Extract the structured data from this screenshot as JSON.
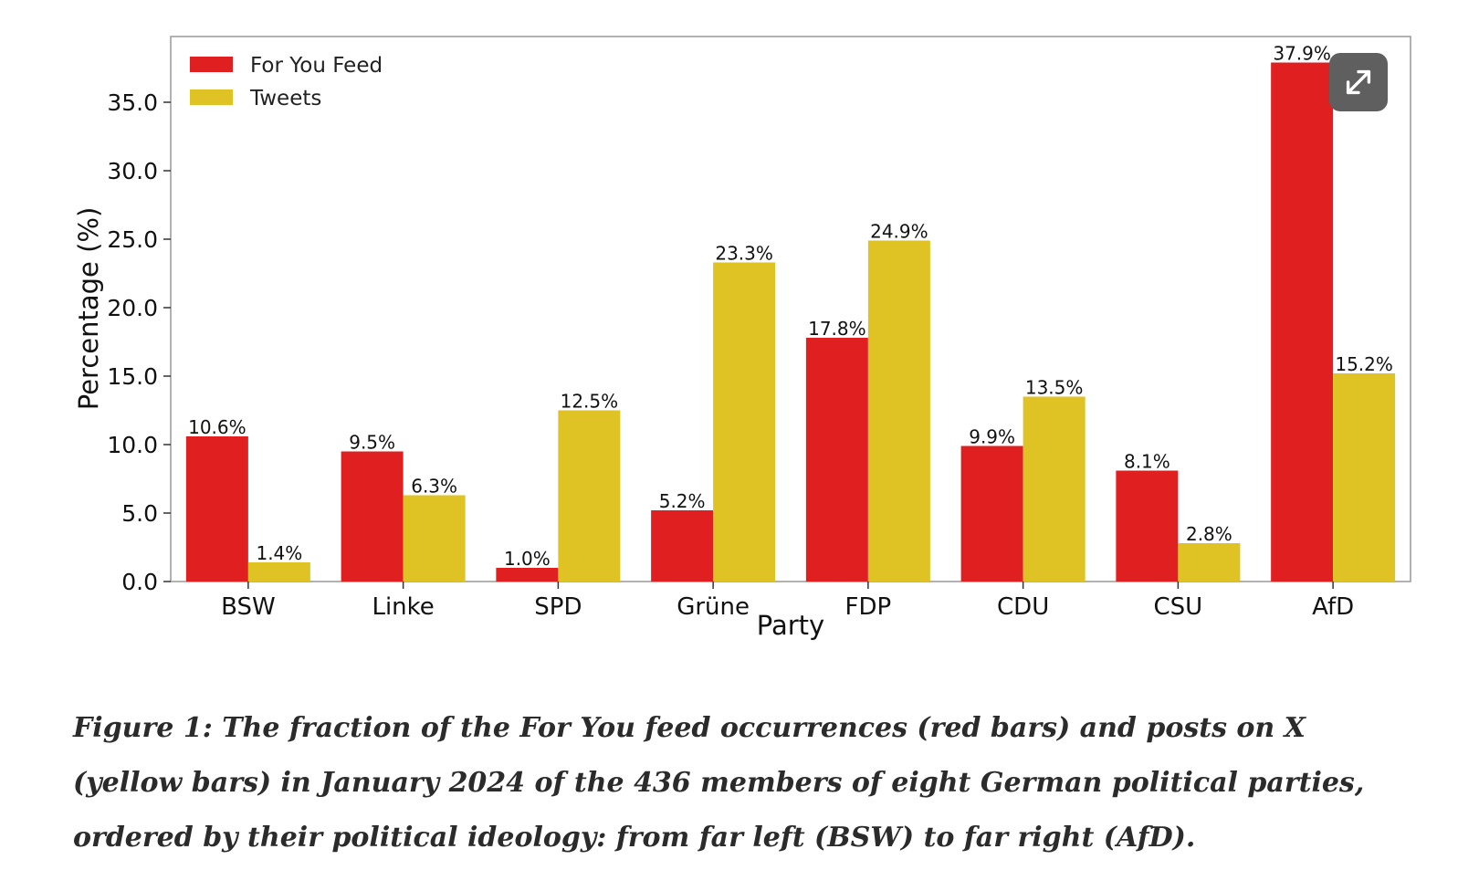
{
  "chart_data": {
    "type": "bar",
    "categories": [
      "BSW",
      "Linke",
      "SPD",
      "Grüne",
      "FDP",
      "CDU",
      "CSU",
      "AfD"
    ],
    "series": [
      {
        "name": "For You Feed",
        "color": "#e02020",
        "values": [
          10.6,
          9.5,
          1.0,
          5.2,
          17.8,
          9.9,
          8.1,
          37.9
        ],
        "labels": [
          "10.6%",
          "9.5%",
          "1.0%",
          "5.2%",
          "17.8%",
          "9.9%",
          "8.1%",
          "37.9%"
        ]
      },
      {
        "name": "Tweets",
        "color": "#dfc223",
        "values": [
          1.4,
          6.3,
          12.5,
          23.3,
          24.9,
          13.5,
          2.8,
          15.2
        ],
        "labels": [
          "1.4%",
          "6.3%",
          "12.5%",
          "23.3%",
          "24.9%",
          "13.5%",
          "2.8%",
          "15.2%"
        ]
      }
    ],
    "xlabel": "Party",
    "ylabel": "Percentage (%)",
    "ylim": [
      0,
      39.8
    ],
    "yticks": [
      0,
      5,
      10,
      15,
      20,
      25,
      30,
      35
    ],
    "ytick_labels": [
      "0.0",
      "5.0",
      "10.0",
      "15.0",
      "20.0",
      "25.0",
      "30.0",
      "35.0"
    ],
    "legend_position": "top-left",
    "grid": false
  },
  "caption": "Figure 1: The fraction of the For You feed occurrences (red bars) and posts on X (yellow bars) in January 2024 of the 436 members of eight German political parties, ordered by their political ideology: from far left (BSW) to far right (AfD).",
  "expand_button": {
    "icon": "expand-icon"
  }
}
